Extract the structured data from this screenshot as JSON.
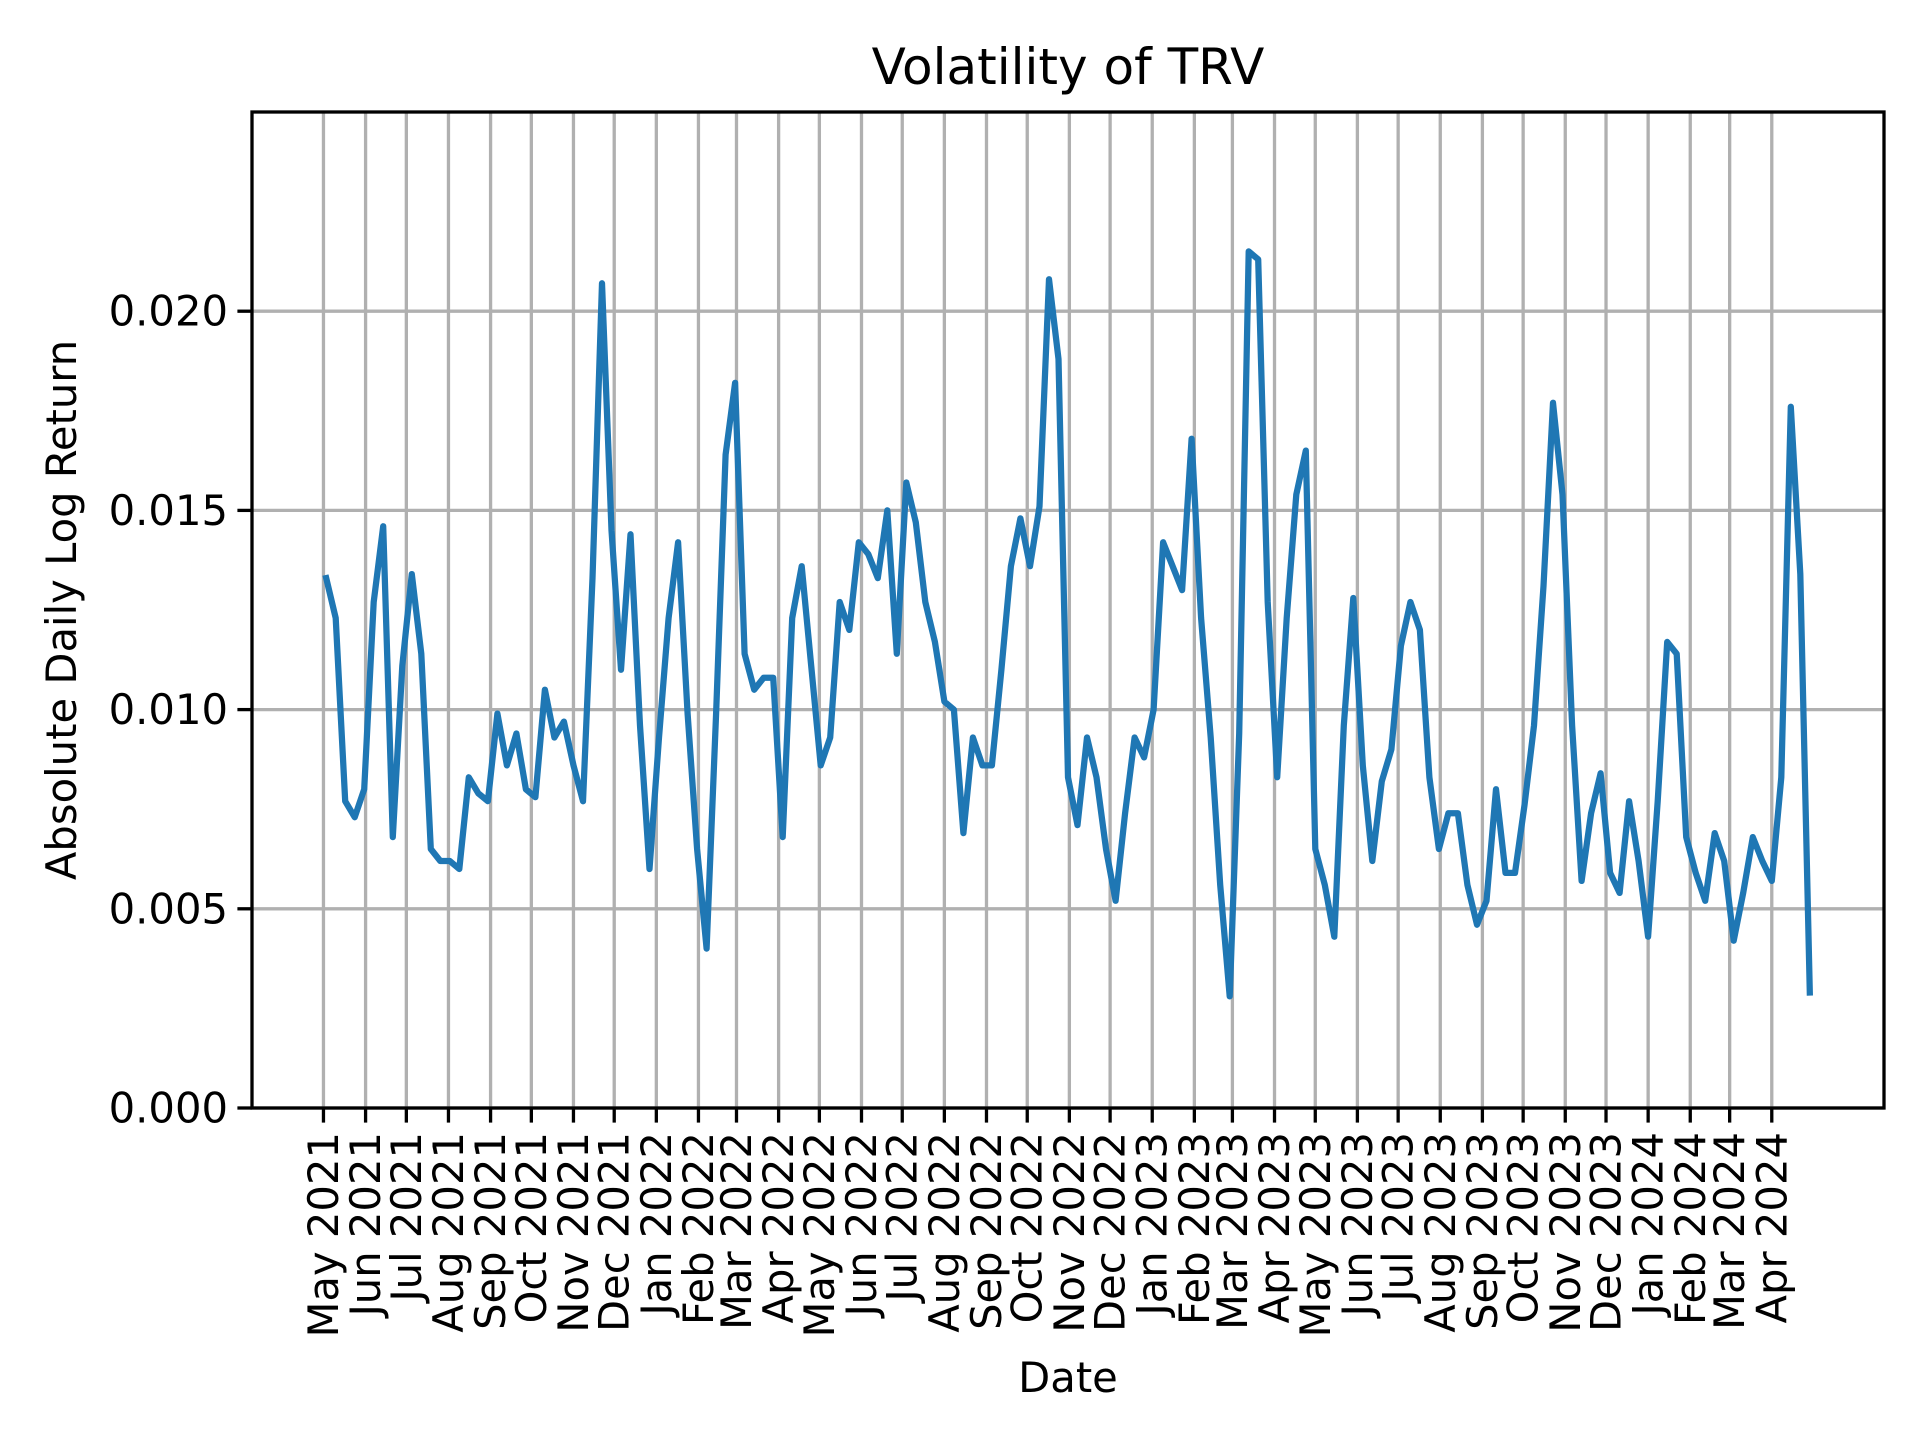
{
  "chart_data": {
    "type": "line",
    "title": "Volatility of TRV",
    "xlabel": "Date",
    "ylabel": "Absolute Daily Log Return",
    "ylim": [
      0,
      0.025
    ],
    "yticks": [
      "0.000",
      "0.005",
      "0.010",
      "0.015",
      "0.020"
    ],
    "xticks": [
      "May 2021",
      "Jun 2021",
      "Jul 2021",
      "Aug 2021",
      "Sep 2021",
      "Oct 2021",
      "Nov 2021",
      "Dec 2021",
      "Jan 2022",
      "Feb 2022",
      "Mar 2022",
      "Apr 2022",
      "May 2022",
      "Jun 2022",
      "Jul 2022",
      "Aug 2022",
      "Sep 2022",
      "Oct 2022",
      "Nov 2022",
      "Dec 2022",
      "Jan 2023",
      "Feb 2023",
      "Mar 2023",
      "Apr 2023",
      "May 2023",
      "Jun 2023",
      "Jul 2023",
      "Aug 2023",
      "Sep 2023",
      "Oct 2023",
      "Nov 2023",
      "Dec 2023",
      "Jan 2024",
      "Feb 2024",
      "Mar 2024",
      "Apr 2024"
    ],
    "grid": true,
    "line_color": "#1f77b4",
    "series": [
      {
        "x": [
          "2021-05-03",
          "2021-05-10",
          "2021-05-17",
          "2021-05-24",
          "2021-05-31",
          "2021-06-07",
          "2021-06-14",
          "2021-06-21",
          "2021-06-28",
          "2021-07-05",
          "2021-07-12",
          "2021-07-19",
          "2021-07-26",
          "2021-08-02",
          "2021-08-09",
          "2021-08-16",
          "2021-08-23",
          "2021-08-30",
          "2021-09-06",
          "2021-09-13",
          "2021-09-20",
          "2021-09-27",
          "2021-10-04",
          "2021-10-11",
          "2021-10-18",
          "2021-10-25",
          "2021-11-01",
          "2021-11-08",
          "2021-11-15",
          "2021-11-22",
          "2021-11-29",
          "2021-12-06",
          "2021-12-13",
          "2021-12-20",
          "2021-12-27",
          "2022-01-03",
          "2022-01-10",
          "2022-01-17",
          "2022-01-24",
          "2022-01-31",
          "2022-02-07",
          "2022-02-14",
          "2022-02-21",
          "2022-02-28",
          "2022-03-07",
          "2022-03-14",
          "2022-03-21",
          "2022-03-28",
          "2022-04-04",
          "2022-04-11",
          "2022-04-18",
          "2022-04-25",
          "2022-05-02",
          "2022-05-09",
          "2022-05-16",
          "2022-05-23",
          "2022-05-30",
          "2022-06-06",
          "2022-06-13",
          "2022-06-20",
          "2022-06-27",
          "2022-07-04",
          "2022-07-11",
          "2022-07-18",
          "2022-07-25",
          "2022-08-01",
          "2022-08-08",
          "2022-08-15",
          "2022-08-22",
          "2022-08-29",
          "2022-09-05",
          "2022-09-12",
          "2022-09-19",
          "2022-09-26",
          "2022-10-03",
          "2022-10-10",
          "2022-10-17",
          "2022-10-24",
          "2022-10-31",
          "2022-11-07",
          "2022-11-14",
          "2022-11-21",
          "2022-11-28",
          "2022-12-05",
          "2022-12-12",
          "2022-12-19",
          "2022-12-26",
          "2023-01-02",
          "2023-01-09",
          "2023-01-16",
          "2023-01-23",
          "2023-01-30",
          "2023-02-06",
          "2023-02-13",
          "2023-02-20",
          "2023-02-27",
          "2023-03-06",
          "2023-03-13",
          "2023-03-20",
          "2023-03-27",
          "2023-04-03",
          "2023-04-10",
          "2023-04-17",
          "2023-04-24",
          "2023-05-01",
          "2023-05-08",
          "2023-05-15",
          "2023-05-22",
          "2023-05-29",
          "2023-06-05",
          "2023-06-12",
          "2023-06-19",
          "2023-06-26",
          "2023-07-03",
          "2023-07-10",
          "2023-07-17",
          "2023-07-24",
          "2023-07-31",
          "2023-08-07",
          "2023-08-14",
          "2023-08-21",
          "2023-08-28",
          "2023-09-04",
          "2023-09-11",
          "2023-09-18",
          "2023-09-25",
          "2023-10-02",
          "2023-10-09",
          "2023-10-16",
          "2023-10-23",
          "2023-10-30",
          "2023-11-06",
          "2023-11-13",
          "2023-11-20",
          "2023-11-27",
          "2023-12-04",
          "2023-12-11",
          "2023-12-18",
          "2023-12-25",
          "2024-01-01",
          "2024-01-08",
          "2024-01-15",
          "2024-01-22",
          "2024-01-29",
          "2024-02-05",
          "2024-02-12",
          "2024-02-19",
          "2024-02-26",
          "2024-03-04",
          "2024-03-11",
          "2024-03-18",
          "2024-03-25",
          "2024-04-01",
          "2024-04-08",
          "2024-04-15",
          "2024-04-22",
          "2024-04-29"
        ],
        "y": [
          0.0133,
          0.0123,
          0.0077,
          0.0073,
          0.008,
          0.0127,
          0.0146,
          0.0068,
          0.0111,
          0.0134,
          0.0114,
          0.0065,
          0.0062,
          0.0062,
          0.006,
          0.0083,
          0.0079,
          0.0077,
          0.0099,
          0.0086,
          0.0094,
          0.008,
          0.0078,
          0.0105,
          0.0093,
          0.0097,
          0.0086,
          0.0077,
          0.0133,
          0.0207,
          0.0145,
          0.011,
          0.0144,
          0.0096,
          0.006,
          0.0093,
          0.0123,
          0.0142,
          0.0099,
          0.0065,
          0.004,
          0.0099,
          0.0164,
          0.0182,
          0.0114,
          0.0105,
          0.0108,
          0.0108,
          0.0068,
          0.0123,
          0.0136,
          0.0111,
          0.0086,
          0.0093,
          0.0127,
          0.012,
          0.0142,
          0.0139,
          0.0133,
          0.015,
          0.0114,
          0.0157,
          0.0147,
          0.0127,
          0.0117,
          0.0102,
          0.01,
          0.0069,
          0.0093,
          0.0086,
          0.0086,
          0.011,
          0.0136,
          0.0148,
          0.0136,
          0.0151,
          0.0208,
          0.0188,
          0.0083,
          0.0071,
          0.0093,
          0.0083,
          0.0065,
          0.0052,
          0.0074,
          0.0093,
          0.0088,
          0.01,
          0.0142,
          0.0136,
          0.013,
          0.0168,
          0.0123,
          0.0093,
          0.0056,
          0.0028,
          0.0094,
          0.0215,
          0.0213,
          0.0127,
          0.0083,
          0.0123,
          0.0154,
          0.0165,
          0.0065,
          0.0056,
          0.0043,
          0.0096,
          0.0128,
          0.0086,
          0.0062,
          0.0082,
          0.009,
          0.0116,
          0.0127,
          0.012,
          0.0083,
          0.0065,
          0.0074,
          0.0074,
          0.0056,
          0.0046,
          0.0052,
          0.008,
          0.0059,
          0.0059,
          0.0076,
          0.0096,
          0.0131,
          0.0177,
          0.0154,
          0.0096,
          0.0057,
          0.0074,
          0.0084,
          0.0059,
          0.0054,
          0.0077,
          0.0062,
          0.0043,
          0.0077,
          0.0117,
          0.0114,
          0.0068,
          0.0059,
          0.0052,
          0.0069,
          0.0062,
          0.0042,
          0.0054,
          0.0068,
          0.0062,
          0.0057,
          0.0083,
          0.0176,
          0.0134,
          0.0029
        ]
      }
    ]
  }
}
